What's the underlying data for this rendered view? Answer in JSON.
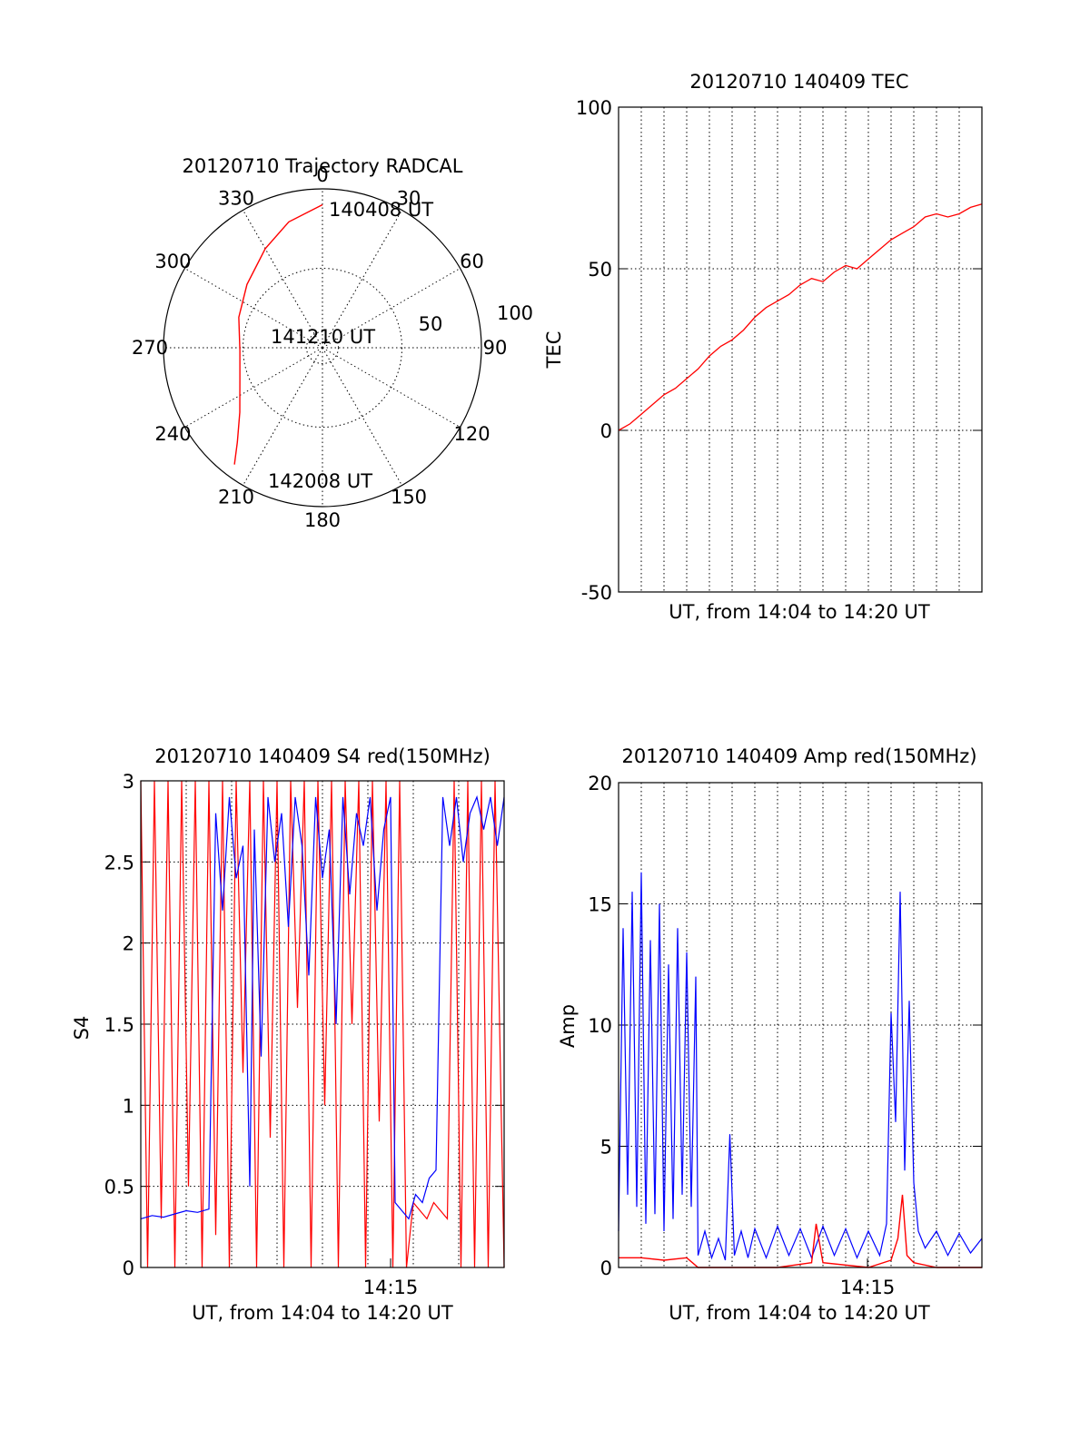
{
  "chart_data": [
    {
      "type": "polar",
      "title": "20120710 Trajectory RADCAL",
      "azimuth_labels": [
        "0",
        "30",
        "60",
        "90",
        "120",
        "150",
        "180",
        "210",
        "240",
        "270",
        "300",
        "330"
      ],
      "radius_labels": [
        "50",
        "100"
      ],
      "annotations": [
        "140408 UT",
        "141210 UT",
        "142008 UT"
      ],
      "series": [
        {
          "color": "#ff0000",
          "points": [
            {
              "az": 0,
              "r": 90
            },
            {
              "az": 345,
              "r": 82
            },
            {
              "az": 330,
              "r": 72
            },
            {
              "az": 310,
              "r": 62
            },
            {
              "az": 290,
              "r": 56
            },
            {
              "az": 268,
              "r": 52
            },
            {
              "az": 248,
              "r": 56
            },
            {
              "az": 232,
              "r": 66
            },
            {
              "az": 222,
              "r": 80
            },
            {
              "az": 217,
              "r": 92
            }
          ]
        }
      ]
    },
    {
      "type": "line",
      "title": "20120710 140409 TEC",
      "xlabel": "UT, from 14:04 to 14:20 UT",
      "ylabel": "TEC",
      "xlim": [
        0,
        16
      ],
      "ylim": [
        -50,
        100
      ],
      "yticks": [
        "-50",
        "0",
        "50",
        "100"
      ],
      "grid": true,
      "series": [
        {
          "color": "#ff0000",
          "x": [
            0,
            0.5,
            1,
            1.5,
            2,
            2.5,
            3,
            3.5,
            4,
            4.5,
            5,
            5.5,
            6,
            6.5,
            7,
            7.5,
            8,
            8.5,
            9,
            9.5,
            10,
            10.5,
            11,
            11.5,
            12,
            12.5,
            13,
            13.5,
            14,
            14.5,
            15,
            15.5,
            16
          ],
          "y": [
            0,
            2,
            5,
            8,
            11,
            13,
            16,
            19,
            23,
            26,
            28,
            31,
            35,
            38,
            40,
            42,
            45,
            47,
            46,
            49,
            51,
            50,
            53,
            56,
            59,
            61,
            63,
            66,
            67,
            66,
            67,
            69,
            70
          ]
        }
      ]
    },
    {
      "type": "line",
      "title": "20120710 140409 S4 red(150MHz)",
      "xlabel": "UT, from 14:04 to 14:20 UT",
      "ylabel": "S4",
      "xlim": [
        0,
        16
      ],
      "ylim": [
        0,
        3
      ],
      "xticks": [
        "14:15"
      ],
      "yticks": [
        "0",
        "0.5",
        "1",
        "1.5",
        "2",
        "2.5",
        "3"
      ],
      "grid": true,
      "series": [
        {
          "color": "#ff0000",
          "x": [
            0.0,
            0.3,
            0.6,
            0.9,
            1.2,
            1.5,
            1.8,
            2.1,
            2.4,
            2.7,
            3.0,
            3.3,
            3.6,
            3.9,
            4.2,
            4.5,
            4.8,
            5.1,
            5.4,
            5.7,
            6.0,
            6.3,
            6.6,
            6.9,
            7.2,
            7.5,
            7.8,
            8.1,
            8.4,
            8.7,
            9.0,
            9.3,
            9.6,
            9.9,
            10.2,
            10.5,
            10.8,
            11.1,
            11.4,
            11.7,
            12.0,
            12.3,
            12.6,
            12.9,
            13.2,
            13.5,
            13.8,
            14.1,
            14.4,
            14.7,
            15.0,
            15.3,
            15.6,
            16.0
          ],
          "y": [
            3.0,
            0.0,
            3.0,
            0.3,
            3.0,
            0.0,
            3.0,
            0.5,
            3.0,
            0.0,
            3.0,
            0.2,
            3.0,
            0.0,
            3.0,
            1.2,
            3.0,
            0.0,
            3.0,
            0.8,
            3.0,
            0.0,
            3.0,
            1.6,
            3.0,
            0.0,
            3.0,
            1.0,
            3.0,
            0.0,
            3.0,
            1.5,
            3.0,
            0.0,
            3.0,
            0.9,
            3.0,
            0.0,
            3.0,
            0.0,
            0.4,
            0.35,
            0.3,
            0.4,
            0.35,
            0.3,
            3.0,
            0.0,
            3.0,
            0.0,
            3.0,
            0.0,
            3.0,
            0.0
          ]
        },
        {
          "color": "#0000ff",
          "x": [
            0.0,
            0.5,
            1.0,
            1.5,
            2.0,
            2.5,
            3.0,
            3.3,
            3.6,
            3.9,
            4.2,
            4.5,
            4.8,
            5.0,
            5.3,
            5.6,
            5.9,
            6.2,
            6.5,
            6.8,
            7.1,
            7.4,
            7.7,
            8.0,
            8.3,
            8.6,
            8.9,
            9.2,
            9.5,
            9.8,
            10.1,
            10.4,
            10.7,
            11.0,
            11.2,
            11.5,
            11.8,
            12.1,
            12.4,
            12.7,
            13.0,
            13.3,
            13.6,
            13.9,
            14.2,
            14.5,
            14.8,
            15.1,
            15.4,
            15.7,
            16.0
          ],
          "y": [
            0.3,
            0.32,
            0.31,
            0.33,
            0.35,
            0.34,
            0.36,
            2.8,
            2.2,
            2.9,
            2.4,
            2.6,
            0.5,
            2.7,
            1.3,
            2.9,
            2.5,
            2.8,
            2.1,
            2.9,
            2.6,
            1.8,
            2.9,
            2.4,
            2.7,
            1.5,
            2.9,
            2.3,
            2.8,
            2.6,
            2.9,
            2.2,
            2.7,
            2.9,
            0.4,
            0.35,
            0.3,
            0.45,
            0.4,
            0.55,
            0.6,
            2.9,
            2.6,
            2.9,
            2.5,
            2.8,
            2.9,
            2.7,
            2.9,
            2.6,
            2.9
          ]
        }
      ]
    },
    {
      "type": "line",
      "title": "20120710 140409 Amp red(150MHz)",
      "xlabel": "UT, from 14:04 to 14:20 UT",
      "ylabel": "Amp",
      "xlim": [
        0,
        16
      ],
      "ylim": [
        0,
        20
      ],
      "xticks": [
        "14:15"
      ],
      "yticks": [
        "0",
        "5",
        "10",
        "15",
        "20"
      ],
      "grid": true,
      "series": [
        {
          "color": "#0000ff",
          "x": [
            0.0,
            0.2,
            0.4,
            0.6,
            0.8,
            1.0,
            1.2,
            1.4,
            1.6,
            1.8,
            2.0,
            2.2,
            2.4,
            2.6,
            2.8,
            3.0,
            3.2,
            3.4,
            3.5,
            3.8,
            4.1,
            4.4,
            4.7,
            4.9,
            5.1,
            5.4,
            5.7,
            6.0,
            6.5,
            7.0,
            7.5,
            8.0,
            8.5,
            9.0,
            9.5,
            10.0,
            10.5,
            11.0,
            11.5,
            11.8,
            12.0,
            12.2,
            12.4,
            12.6,
            12.8,
            13.0,
            13.2,
            13.5,
            14.0,
            14.5,
            15.0,
            15.5,
            16.0
          ],
          "y": [
            1.5,
            14.0,
            3.0,
            15.5,
            2.5,
            16.3,
            1.8,
            13.5,
            2.2,
            15.0,
            1.5,
            12.5,
            2.0,
            14.0,
            3.0,
            13.0,
            2.5,
            12.0,
            0.5,
            1.5,
            0.4,
            1.2,
            0.3,
            5.5,
            0.5,
            1.5,
            0.4,
            1.6,
            0.4,
            1.7,
            0.5,
            1.6,
            0.4,
            1.7,
            0.5,
            1.6,
            0.4,
            1.5,
            0.5,
            1.8,
            10.5,
            6.0,
            15.5,
            4.0,
            11.0,
            3.5,
            1.5,
            0.8,
            1.5,
            0.5,
            1.4,
            0.6,
            1.2
          ]
        },
        {
          "color": "#ff0000",
          "x": [
            0.0,
            1.0,
            2.0,
            3.0,
            3.5,
            5.0,
            7.0,
            8.5,
            8.7,
            9.0,
            11.0,
            12.0,
            12.3,
            12.5,
            12.7,
            13.0,
            14.0,
            16.0
          ],
          "y": [
            0.4,
            0.4,
            0.3,
            0.4,
            0.0,
            0.0,
            0.0,
            0.2,
            1.8,
            0.2,
            0.0,
            0.3,
            1.2,
            3.0,
            0.5,
            0.2,
            0.0,
            0.0
          ]
        }
      ]
    }
  ]
}
